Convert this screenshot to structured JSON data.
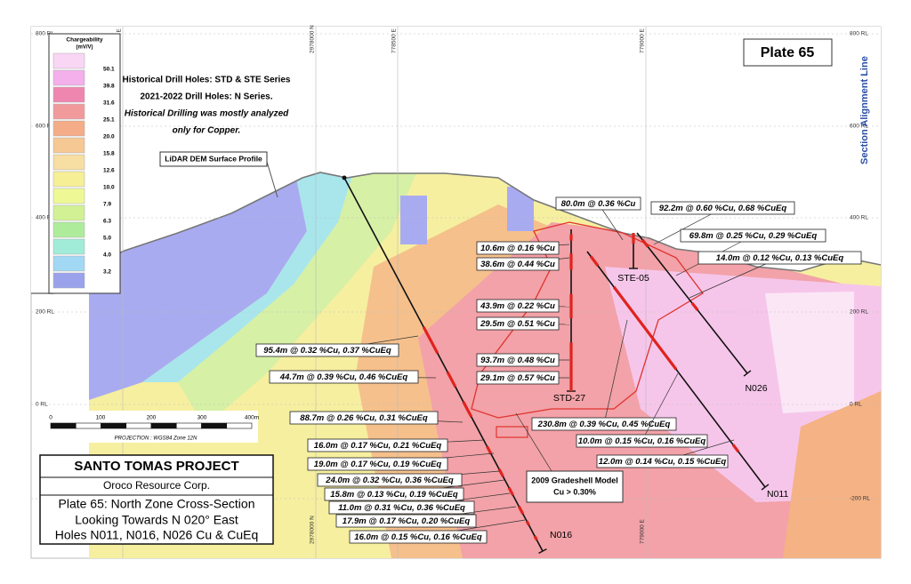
{
  "plate": "Plate 65",
  "section_label": "Section Alignment Line",
  "rl_left": [
    "800 RL",
    "600 RL",
    "400 RL",
    "200 RL",
    "0 RL"
  ],
  "rl_right": [
    "800 RL",
    "600 RL",
    "400 RL",
    "200 RL",
    "0 RL",
    "-200 RL"
  ],
  "grid_top": [
    "778000 E",
    "2978000 N",
    "778500 E",
    "779000 E"
  ],
  "grid_bottom": [
    "2978000 N",
    "779000 E"
  ],
  "legend": {
    "title": "Chargeability",
    "unit": "(mV/V)",
    "labels": [
      "50.1",
      "39.8",
      "31.6",
      "25.1",
      "20.0",
      "15.8",
      "12.6",
      "10.0",
      "7.9",
      "6.3",
      "5.0",
      "4.0",
      "3.2"
    ],
    "colors": [
      "#f9d6f4",
      "#f3b0ea",
      "#ee86b0",
      "#f19a9c",
      "#f4ad88",
      "#f6c894",
      "#f7dea2",
      "#f6ef96",
      "#eef996",
      "#d2f194",
      "#aeec9c",
      "#a0ecd8",
      "#a2d8f4",
      "#9aa2ec"
    ]
  },
  "notes": [
    "Historical Drill Holes: STD & STE Series",
    "2021-2022 Drill Holes: N Series.",
    "Historical Drilling was mostly analyzed",
    "only for Copper."
  ],
  "surface_label": "LiDAR DEM Surface Profile",
  "holes": [
    "N016",
    "N011",
    "N026",
    "STD-27",
    "STE-05"
  ],
  "intercepts": [
    "80.0m @ 0.36 %Cu",
    "92.2m @ 0.60 %Cu, 0.68 %CuEq",
    "69.8m @ 0.25 %Cu, 0.29 %CuEq",
    "14.0m @ 0.12 %Cu, 0.13 %CuEq",
    "10.6m @ 0.16 %Cu",
    "38.6m @ 0.44 %Cu",
    "43.9m @ 0.22 %Cu",
    "29.5m @ 0.51 %Cu",
    "93.7m @ 0.48 %Cu",
    "29.1m @ 0.57 %Cu",
    "95.4m @ 0.32 %Cu, 0.37 %CuEq",
    "44.7m @ 0.39 %Cu, 0.46 %CuEq",
    "88.7m @ 0.26 %Cu, 0.31 %CuEq",
    "16.0m @ 0.17 %Cu, 0.21 %CuEq",
    "19.0m @ 0.17 %Cu, 0.19 %CuEq",
    "24.0m @ 0.32 %Cu, 0.36 %CuEq",
    "15.8m @ 0.13 %Cu, 0.19 %CuEq",
    "11.0m @ 0.31 %Cu, 0.36 %CuEq",
    "17.9m @ 0.17 %Cu, 0.20 %CuEq",
    "16.0m @ 0.15 %Cu, 0.16 %CuEq",
    "230.8m @ 0.39 %Cu, 0.45 %CuEq",
    "10.0m @ 0.15 %Cu, 0.16 %CuEq",
    "12.0m @ 0.14 %Cu, 0.15 %CuEq"
  ],
  "gradeshell": [
    "2009 Gradeshell Model",
    "Cu > 0.30%"
  ],
  "scale": {
    "labels": [
      "0",
      "100",
      "200",
      "300",
      "400m"
    ],
    "projection": "PROJECTION : WGS84 Zone 12N"
  },
  "title_block": [
    "SANTO TOMAS PROJECT",
    "Oroco Resource Corp.",
    "Plate 65: North Zone Cross-Section",
    "Looking Towards N 020° East",
    "Holes N011, N016, N026 Cu & CuEq"
  ]
}
